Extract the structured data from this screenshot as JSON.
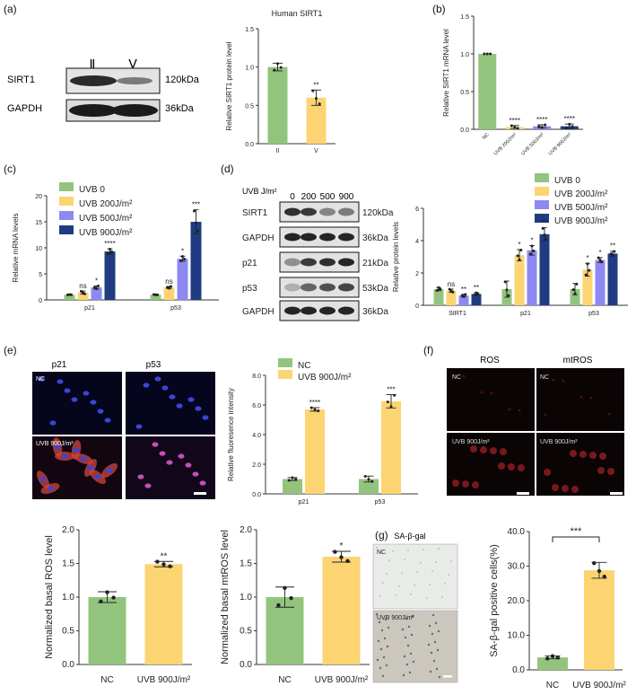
{
  "colors": {
    "green": "#93c47d",
    "yellow": "#fcd472",
    "purple": "#8e88f2",
    "navy": "#1f3c82",
    "axis": "#333333"
  },
  "panel_labels": [
    "(a)",
    "(b)",
    "(c)",
    "(d)",
    "(e)",
    "(f)",
    "(g)"
  ],
  "blots": {
    "a": {
      "lanes": [
        "Ⅱ",
        "Ⅴ"
      ],
      "rows": [
        "SIRT1",
        "GAPDH"
      ],
      "kda": [
        "120kDa",
        "36kDa"
      ]
    },
    "d": {
      "header_label": "UVB  J/m²",
      "lanes": [
        "0",
        "200",
        "500",
        "900"
      ],
      "rows": [
        "SIRT1",
        "GAPDH",
        "p21",
        "p53",
        "GAPDH"
      ],
      "kda": [
        "120kDa",
        "36kDa",
        "21kDa",
        "53kDa",
        "36kDa"
      ]
    }
  },
  "micro": {
    "e": {
      "cols": [
        "p21",
        "p53"
      ],
      "rows": [
        "NC",
        "UVB 900J/m²"
      ]
    },
    "f": {
      "cols": [
        "ROS",
        "mtROS"
      ],
      "rows": [
        "NC",
        "UVB 900J/m²"
      ]
    },
    "g": {
      "title": "SA-β-gal",
      "rows": [
        "NC",
        "UVB 900J/m²"
      ]
    }
  },
  "chart_data": [
    {
      "id": "a",
      "type": "bar",
      "title": "Human SIRT1",
      "ylabel": "Relative  SIRT1 protein level",
      "ylim": [
        0,
        1.5
      ],
      "yticks": [
        "0.0",
        "0.5",
        "1.0",
        "1.5"
      ],
      "categories": [
        "II",
        "V"
      ],
      "values": [
        1.0,
        0.6
      ],
      "errors": [
        0.05,
        0.1
      ],
      "sig": [
        "",
        "**"
      ]
    },
    {
      "id": "b",
      "type": "bar",
      "ylabel": "Relative SIRT1 mRNA level",
      "ylim": [
        0,
        1.5
      ],
      "yticks": [
        "0.0",
        "0.5",
        "1.0",
        "1.5"
      ],
      "categories": [
        "NC",
        "UVB 200J/m²",
        "UVB 500J/m²",
        "UVB 900J/m²"
      ],
      "values": [
        1.0,
        0.03,
        0.04,
        0.04
      ],
      "errors": [
        0,
        0.02,
        0.02,
        0.03
      ],
      "sig": [
        "",
        "****",
        "****",
        "****"
      ]
    },
    {
      "id": "c",
      "type": "bar",
      "ylabel": "Relative  mRNA levels",
      "ylim": [
        0,
        20
      ],
      "yticks": [
        "0",
        "5",
        "10",
        "15",
        "20"
      ],
      "categories": [
        "p21",
        "p53"
      ],
      "series": [
        {
          "name": "UVB 0",
          "values": [
            1.0,
            1.0
          ],
          "errors": [
            0.05,
            0.05
          ],
          "sig": [
            "",
            ""
          ]
        },
        {
          "name": "UVB 200J/m²",
          "values": [
            1.4,
            2.4
          ],
          "errors": [
            0.3,
            0.2
          ],
          "sig": [
            "ns",
            "ns"
          ]
        },
        {
          "name": "UVB 500J/m²",
          "values": [
            2.4,
            7.9
          ],
          "errors": [
            0.3,
            0.5
          ],
          "sig": [
            "*",
            "*"
          ]
        },
        {
          "name": "UVB 900J/m²",
          "values": [
            9.3,
            15.0
          ],
          "errors": [
            0.5,
            2.3
          ],
          "sig": [
            "****",
            "***"
          ]
        }
      ]
    },
    {
      "id": "d",
      "type": "bar",
      "ylabel": "Relative protein levels",
      "ylim": [
        0,
        6
      ],
      "yticks": [
        "0",
        "2",
        "4",
        "6"
      ],
      "categories": [
        "SIRT1",
        "p21",
        "p53"
      ],
      "series": [
        {
          "name": "UVB 0",
          "values": [
            1.0,
            1.0,
            1.0
          ],
          "errors": [
            0.1,
            0.5,
            0.35
          ],
          "sig": [
            "",
            "",
            ""
          ]
        },
        {
          "name": "UVB 200J/m²",
          "values": [
            0.9,
            3.1,
            2.2
          ],
          "errors": [
            0.1,
            0.35,
            0.4
          ],
          "sig": [
            "ns",
            "*",
            "*"
          ]
        },
        {
          "name": "UVB 500J/m²",
          "values": [
            0.6,
            3.4,
            2.8
          ],
          "errors": [
            0.08,
            0.3,
            0.15
          ],
          "sig": [
            "**",
            "*",
            "*"
          ]
        },
        {
          "name": "UVB 900J/m²",
          "values": [
            0.7,
            4.4,
            3.2
          ],
          "errors": [
            0.08,
            0.4,
            0.15
          ],
          "sig": [
            "**",
            "**",
            "**"
          ]
        }
      ]
    },
    {
      "id": "e",
      "type": "bar",
      "ylabel": "Relative fluoresence intensity",
      "ylim": [
        0,
        8
      ],
      "yticks": [
        "0.0",
        "2.0",
        "4.0",
        "6.0",
        "8.0"
      ],
      "categories": [
        "p21",
        "p53"
      ],
      "series": [
        {
          "name": "NC",
          "values": [
            1.0,
            1.0
          ],
          "errors": [
            0.1,
            0.2
          ],
          "sig": [
            "",
            ""
          ]
        },
        {
          "name": "UVB 900J/m²",
          "values": [
            5.7,
            6.25
          ],
          "errors": [
            0.12,
            0.45
          ],
          "sig": [
            "****",
            "***"
          ]
        }
      ]
    },
    {
      "id": "ros",
      "type": "bar",
      "ylabel": "Normalized basal ROS level",
      "ylim": [
        0,
        2.0
      ],
      "yticks": [
        "0.0",
        "0.5",
        "1.0",
        "1.5",
        "2.0"
      ],
      "categories": [
        "NC",
        "UVB 900J/m²"
      ],
      "values": [
        1.0,
        1.49
      ],
      "errors": [
        0.08,
        0.04
      ],
      "sig": [
        "",
        "**"
      ]
    },
    {
      "id": "mtros",
      "type": "bar",
      "ylabel": "Normalized basal mtROS level",
      "ylim": [
        0,
        2.0
      ],
      "yticks": [
        "0.0",
        "0.5",
        "1.0",
        "1.5",
        "2.0"
      ],
      "categories": [
        "NC",
        "UVB 900J/m²"
      ],
      "values": [
        1.0,
        1.6
      ],
      "errors": [
        0.15,
        0.08
      ],
      "sig": [
        "",
        "*"
      ]
    },
    {
      "id": "g",
      "type": "bar",
      "ylabel": "SA-β-gal positive cells(%)",
      "ylim": [
        0,
        40
      ],
      "yticks": [
        "0.0",
        "10.0",
        "20.0",
        "30.0",
        "40.0"
      ],
      "categories": [
        "NC",
        "UVB 900J/m²"
      ],
      "values": [
        3.6,
        28.8
      ],
      "errors": [
        0.4,
        2.3
      ],
      "sig": [
        "",
        ""
      ],
      "bracket": "***"
    }
  ]
}
